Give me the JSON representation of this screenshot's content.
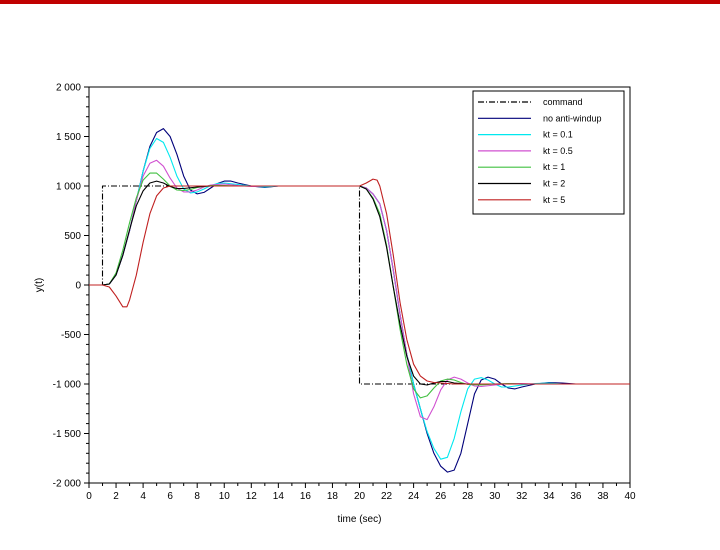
{
  "colors": {
    "top_bar": "#c00000"
  },
  "chart_data": {
    "type": "line",
    "title": "",
    "xlabel": "time (sec)",
    "ylabel": "y(t)",
    "xlim": [
      0,
      40
    ],
    "ylim": [
      -2000,
      2000
    ],
    "x_ticks": [
      0,
      2,
      4,
      6,
      8,
      10,
      12,
      14,
      16,
      18,
      20,
      22,
      24,
      26,
      28,
      30,
      32,
      34,
      36,
      38,
      40
    ],
    "x_tick_labels": [
      "0",
      "2",
      "4",
      "6",
      "8",
      "10",
      "12",
      "14",
      "16",
      "18",
      "20",
      "22",
      "24",
      "26",
      "28",
      "30",
      "32",
      "34",
      "36",
      "38",
      "40"
    ],
    "y_ticks": [
      -2000,
      -1500,
      -1000,
      -500,
      0,
      500,
      1000,
      1500,
      2000
    ],
    "y_tick_labels": [
      "-2 000",
      "-1 500",
      "-1 000",
      "-500",
      "0",
      "500",
      "1 000",
      "1 500",
      "2 000"
    ],
    "grid": false,
    "legend_position": "top-right",
    "series": [
      {
        "name": "command",
        "color": "#000000",
        "dash": "6,2,1,2",
        "points": [
          [
            0,
            0
          ],
          [
            1,
            0
          ],
          [
            1,
            1000
          ],
          [
            20,
            1000
          ],
          [
            20,
            -1000
          ],
          [
            40,
            -1000
          ]
        ]
      },
      {
        "name": "no anti-windup",
        "color": "#00007a",
        "dash": "",
        "points": [
          [
            0,
            0
          ],
          [
            1,
            0
          ],
          [
            1.5,
            10
          ],
          [
            2,
            100
          ],
          [
            2.5,
            300
          ],
          [
            3,
            550
          ],
          [
            3.5,
            850
          ],
          [
            4,
            1150
          ],
          [
            4.5,
            1400
          ],
          [
            5,
            1540
          ],
          [
            5.5,
            1580
          ],
          [
            6,
            1500
          ],
          [
            6.5,
            1320
          ],
          [
            7,
            1100
          ],
          [
            7.5,
            960
          ],
          [
            8,
            920
          ],
          [
            8.5,
            935
          ],
          [
            9,
            980
          ],
          [
            9.5,
            1025
          ],
          [
            10,
            1050
          ],
          [
            10.5,
            1050
          ],
          [
            11,
            1030
          ],
          [
            12,
            1000
          ],
          [
            13,
            985
          ],
          [
            14,
            1000
          ],
          [
            15,
            1000
          ],
          [
            16,
            1000
          ],
          [
            20,
            1000
          ],
          [
            20.5,
            980
          ],
          [
            21,
            920
          ],
          [
            21.5,
            820
          ],
          [
            22,
            550
          ],
          [
            22.5,
            150
          ],
          [
            23,
            -300
          ],
          [
            23.5,
            -700
          ],
          [
            24,
            -1000
          ],
          [
            24.5,
            -1250
          ],
          [
            25,
            -1500
          ],
          [
            25.5,
            -1700
          ],
          [
            26,
            -1830
          ],
          [
            26.5,
            -1890
          ],
          [
            27,
            -1870
          ],
          [
            27.5,
            -1700
          ],
          [
            28,
            -1400
          ],
          [
            28.5,
            -1100
          ],
          [
            29,
            -960
          ],
          [
            29.5,
            -930
          ],
          [
            30,
            -950
          ],
          [
            30.5,
            -1000
          ],
          [
            31,
            -1040
          ],
          [
            31.5,
            -1050
          ],
          [
            32,
            -1030
          ],
          [
            33,
            -1000
          ],
          [
            34,
            -985
          ],
          [
            35,
            -990
          ],
          [
            36,
            -1000
          ],
          [
            37,
            -1000
          ]
        ]
      },
      {
        "name": "kt = 0.1",
        "color": "#00e8ef",
        "dash": "",
        "points": [
          [
            0,
            0
          ],
          [
            1,
            0
          ],
          [
            1.5,
            10
          ],
          [
            2,
            100
          ],
          [
            2.5,
            300
          ],
          [
            3,
            550
          ],
          [
            3.5,
            850
          ],
          [
            4,
            1150
          ],
          [
            4.5,
            1380
          ],
          [
            5,
            1480
          ],
          [
            5.5,
            1440
          ],
          [
            6,
            1290
          ],
          [
            6.5,
            1100
          ],
          [
            7,
            970
          ],
          [
            7.5,
            930
          ],
          [
            8,
            940
          ],
          [
            8.5,
            970
          ],
          [
            9,
            1005
          ],
          [
            9.5,
            1025
          ],
          [
            10,
            1030
          ],
          [
            11,
            1015
          ],
          [
            12,
            1000
          ],
          [
            13,
            990
          ],
          [
            14,
            1000
          ],
          [
            15,
            1000
          ],
          [
            20,
            1000
          ],
          [
            20.5,
            980
          ],
          [
            21,
            920
          ],
          [
            21.5,
            820
          ],
          [
            22,
            550
          ],
          [
            22.5,
            150
          ],
          [
            23,
            -300
          ],
          [
            23.5,
            -700
          ],
          [
            24,
            -1000
          ],
          [
            24.5,
            -1250
          ],
          [
            25,
            -1480
          ],
          [
            25.5,
            -1650
          ],
          [
            26,
            -1760
          ],
          [
            26.5,
            -1740
          ],
          [
            27,
            -1550
          ],
          [
            27.5,
            -1280
          ],
          [
            28,
            -1050
          ],
          [
            28.5,
            -950
          ],
          [
            29,
            -935
          ],
          [
            29.5,
            -960
          ],
          [
            30,
            -1000
          ],
          [
            30.5,
            -1030
          ],
          [
            31,
            -1030
          ],
          [
            32,
            -1010
          ],
          [
            33,
            -995
          ],
          [
            34,
            -990
          ],
          [
            35,
            -1000
          ],
          [
            36,
            -1000
          ]
        ]
      },
      {
        "name": "kt = 0.5",
        "color": "#d050d0",
        "dash": "",
        "points": [
          [
            0,
            0
          ],
          [
            1,
            0
          ],
          [
            1.5,
            10
          ],
          [
            2,
            100
          ],
          [
            2.5,
            300
          ],
          [
            3,
            550
          ],
          [
            3.5,
            850
          ],
          [
            4,
            1100
          ],
          [
            4.5,
            1230
          ],
          [
            5,
            1260
          ],
          [
            5.5,
            1200
          ],
          [
            6,
            1080
          ],
          [
            6.5,
            980
          ],
          [
            7,
            940
          ],
          [
            7.5,
            940
          ],
          [
            8,
            960
          ],
          [
            8.5,
            990
          ],
          [
            9,
            1010
          ],
          [
            10,
            1020
          ],
          [
            11,
            1005
          ],
          [
            12,
            995
          ],
          [
            13,
            1000
          ],
          [
            20,
            1000
          ],
          [
            20.5,
            980
          ],
          [
            21,
            920
          ],
          [
            21.5,
            820
          ],
          [
            22,
            550
          ],
          [
            22.5,
            150
          ],
          [
            23,
            -300
          ],
          [
            23.5,
            -700
          ],
          [
            24,
            -1100
          ],
          [
            24.5,
            -1330
          ],
          [
            25,
            -1360
          ],
          [
            25.5,
            -1230
          ],
          [
            26,
            -1060
          ],
          [
            26.5,
            -960
          ],
          [
            27,
            -930
          ],
          [
            27.5,
            -950
          ],
          [
            28,
            -990
          ],
          [
            28.5,
            -1020
          ],
          [
            29,
            -1025
          ],
          [
            30,
            -1010
          ],
          [
            31,
            -995
          ],
          [
            32,
            -995
          ],
          [
            33,
            -1000
          ],
          [
            34,
            -1000
          ]
        ]
      },
      {
        "name": "kt = 1",
        "color": "#40c040",
        "dash": "",
        "points": [
          [
            0,
            0
          ],
          [
            1,
            0
          ],
          [
            1.5,
            10
          ],
          [
            2,
            120
          ],
          [
            2.5,
            350
          ],
          [
            3,
            630
          ],
          [
            3.5,
            880
          ],
          [
            4,
            1060
          ],
          [
            4.5,
            1130
          ],
          [
            5,
            1130
          ],
          [
            5.5,
            1070
          ],
          [
            6,
            1000
          ],
          [
            6.5,
            960
          ],
          [
            7,
            955
          ],
          [
            7.5,
            965
          ],
          [
            8,
            985
          ],
          [
            9,
            1005
          ],
          [
            10,
            1005
          ],
          [
            11,
            1000
          ],
          [
            20,
            1000
          ],
          [
            20.5,
            970
          ],
          [
            21,
            880
          ],
          [
            21.5,
            720
          ],
          [
            22,
            400
          ],
          [
            22.5,
            -20
          ],
          [
            23,
            -450
          ],
          [
            23.5,
            -800
          ],
          [
            24,
            -1050
          ],
          [
            24.5,
            -1140
          ],
          [
            25,
            -1120
          ],
          [
            25.5,
            -1040
          ],
          [
            26,
            -970
          ],
          [
            26.5,
            -950
          ],
          [
            27,
            -960
          ],
          [
            27.5,
            -985
          ],
          [
            28,
            -1005
          ],
          [
            29,
            -1010
          ],
          [
            30,
            -1000
          ],
          [
            31,
            -995
          ],
          [
            32,
            -1000
          ],
          [
            33,
            -1000
          ]
        ]
      },
      {
        "name": "kt = 2",
        "color": "#000000",
        "dash": "",
        "points": [
          [
            0,
            0
          ],
          [
            1,
            0
          ],
          [
            1.5,
            10
          ],
          [
            2,
            100
          ],
          [
            2.5,
            300
          ],
          [
            3,
            560
          ],
          [
            3.5,
            800
          ],
          [
            4,
            950
          ],
          [
            4.5,
            1030
          ],
          [
            5,
            1050
          ],
          [
            5.5,
            1030
          ],
          [
            6,
            995
          ],
          [
            6.5,
            975
          ],
          [
            7,
            975
          ],
          [
            8,
            990
          ],
          [
            9,
            1000
          ],
          [
            10,
            1000
          ],
          [
            20,
            1000
          ],
          [
            20.5,
            970
          ],
          [
            21,
            870
          ],
          [
            21.5,
            690
          ],
          [
            22,
            380
          ],
          [
            22.5,
            -20
          ],
          [
            23,
            -400
          ],
          [
            23.5,
            -720
          ],
          [
            24,
            -920
          ],
          [
            24.5,
            -1000
          ],
          [
            25,
            -1010
          ],
          [
            25.5,
            -990
          ],
          [
            26,
            -975
          ],
          [
            26.5,
            -975
          ],
          [
            27,
            -990
          ],
          [
            28,
            -1000
          ],
          [
            29,
            -1000
          ],
          [
            30,
            -1000
          ]
        ]
      },
      {
        "name": "kt = 5",
        "color": "#c02020",
        "dash": "",
        "points": [
          [
            0,
            0
          ],
          [
            1,
            0
          ],
          [
            1.5,
            -20
          ],
          [
            2,
            -110
          ],
          [
            2.5,
            -220
          ],
          [
            2.8,
            -220
          ],
          [
            3,
            -150
          ],
          [
            3.5,
            100
          ],
          [
            4,
            430
          ],
          [
            4.5,
            720
          ],
          [
            5,
            900
          ],
          [
            5.5,
            980
          ],
          [
            6,
            1000
          ],
          [
            6.5,
            1000
          ],
          [
            7,
            1000
          ],
          [
            20,
            1000
          ],
          [
            20.5,
            1030
          ],
          [
            21,
            1070
          ],
          [
            21.3,
            1060
          ],
          [
            21.5,
            1000
          ],
          [
            22,
            720
          ],
          [
            22.5,
            300
          ],
          [
            23,
            -180
          ],
          [
            23.5,
            -550
          ],
          [
            24,
            -800
          ],
          [
            24.5,
            -920
          ],
          [
            25,
            -970
          ],
          [
            25.5,
            -985
          ],
          [
            26,
            -990
          ],
          [
            27,
            -1000
          ],
          [
            28,
            -1000
          ],
          [
            29,
            -1000
          ],
          [
            40,
            -1000
          ]
        ]
      }
    ]
  }
}
